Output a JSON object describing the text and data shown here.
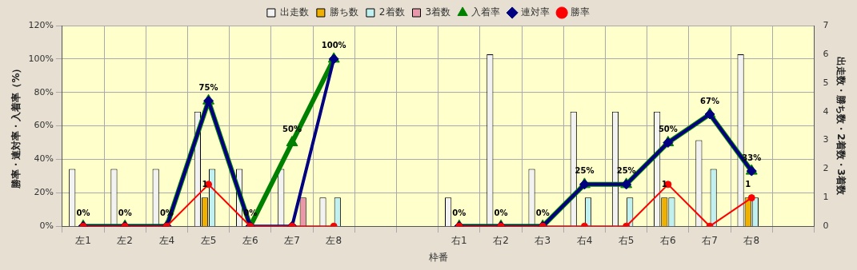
{
  "chart_data": {
    "type": "bar",
    "xlabel": "枠番",
    "ylabel": "勝率・連対率・入着率（%）",
    "y2label": "出走数・勝ち数・2着数・3着数",
    "categories": [
      "左1",
      "左2",
      "左4",
      "左5",
      "左6",
      "左7",
      "左8",
      null,
      null,
      "右1",
      "右2",
      "右3",
      "右4",
      "右5",
      "右6",
      "右7",
      "右8",
      null
    ],
    "series": [
      {
        "name": "出走数",
        "axis": "y2",
        "color": "#f2f2f2",
        "values": [
          2,
          2,
          2,
          4,
          2,
          2,
          1,
          null,
          null,
          1,
          6,
          2,
          4,
          4,
          4,
          3,
          6,
          null
        ]
      },
      {
        "name": "勝ち数",
        "axis": "y2",
        "color": "#f0b000",
        "values": [
          0,
          0,
          0,
          1,
          0,
          0,
          0,
          null,
          null,
          0,
          0,
          0,
          0,
          0,
          1,
          0,
          1,
          null
        ],
        "value_labels": [
          null,
          null,
          null,
          "1",
          null,
          null,
          null,
          null,
          null,
          null,
          null,
          null,
          null,
          null,
          "1",
          null,
          "1",
          null
        ]
      },
      {
        "name": "2着数",
        "axis": "y2",
        "color": "#c0f0f0",
        "values": [
          0,
          0,
          0,
          2,
          0,
          0,
          1,
          null,
          null,
          0,
          0,
          0,
          1,
          1,
          1,
          2,
          1,
          null
        ]
      },
      {
        "name": "3着数",
        "axis": "y2",
        "color": "#e898a8",
        "values": [
          0,
          0,
          0,
          0,
          0,
          1,
          0,
          null,
          null,
          0,
          0,
          0,
          0,
          0,
          0,
          0,
          0,
          null
        ]
      },
      {
        "name": "入着率",
        "type": "line",
        "marker": "triangle",
        "color": "#008000",
        "values": [
          0,
          0,
          0,
          75,
          0,
          50,
          100,
          null,
          null,
          0,
          0,
          0,
          25,
          25,
          50,
          67,
          33,
          null
        ],
        "value_labels": [
          "0%",
          "0%",
          "0%",
          "75%",
          "0%",
          "50%",
          "100%",
          null,
          null,
          "0%",
          "0%",
          "0%",
          "25%",
          "25%",
          "50%",
          "67%",
          "33%",
          null
        ]
      },
      {
        "name": "連対率",
        "type": "line",
        "marker": "diamond",
        "color": "#000080",
        "values": [
          0,
          0,
          0,
          75,
          0,
          0,
          100,
          null,
          null,
          0,
          0,
          0,
          25,
          25,
          50,
          67,
          33,
          null
        ]
      },
      {
        "name": "勝率",
        "type": "line",
        "marker": "circle",
        "color": "#ff0000",
        "values": [
          0,
          0,
          0,
          25,
          0,
          0,
          0,
          null,
          null,
          0,
          0,
          0,
          0,
          0,
          25,
          0,
          17,
          null
        ]
      }
    ],
    "ylim": [
      0,
      120
    ],
    "yticks": [
      {
        "value": 0,
        "label": "0%"
      },
      {
        "value": 20,
        "label": "20%"
      },
      {
        "value": 40,
        "label": "40%"
      },
      {
        "value": 60,
        "label": "60%"
      },
      {
        "value": 80,
        "label": "80%"
      },
      {
        "value": 100,
        "label": "100%"
      },
      {
        "value": 120,
        "label": "120%"
      }
    ],
    "y2lim": [
      0,
      7
    ],
    "y2ticks": [
      0,
      1,
      2,
      3,
      4,
      5,
      6,
      7
    ],
    "grid": true,
    "legend": "top"
  }
}
